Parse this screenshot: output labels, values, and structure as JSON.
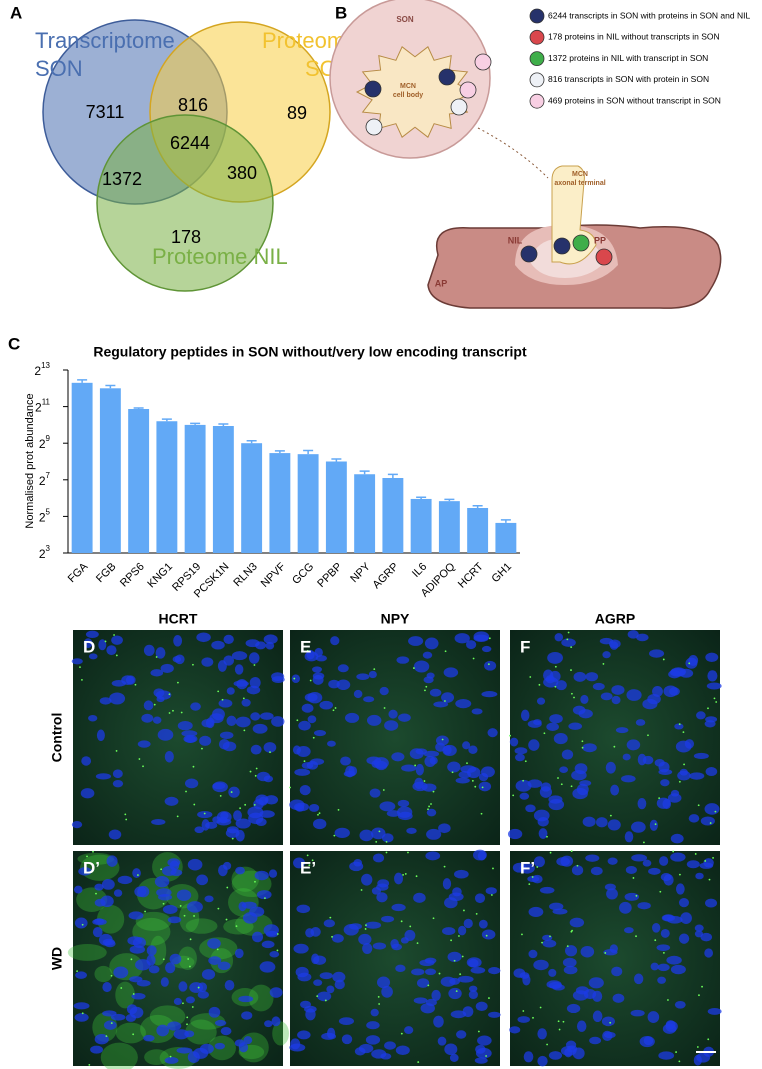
{
  "venn": {
    "label": "A",
    "sets": [
      {
        "lines": [
          "Transcriptome",
          "SON"
        ],
        "color": "#4a6fb0"
      },
      {
        "lines": [
          "Proteome",
          "SON"
        ],
        "color": "#f2c230"
      },
      {
        "lines": [
          "Proteome NIL"
        ],
        "color": "#7ab046"
      }
    ],
    "regions": [
      "7311",
      "816",
      "89",
      "6244",
      "1372",
      "380",
      "178"
    ]
  },
  "schematic": {
    "label": "B",
    "son": "SON",
    "cell_body": [
      "MCN",
      "cell body"
    ],
    "terminal": [
      "MCN",
      "axonal terminal"
    ],
    "nil": "NIL",
    "pp": "PP",
    "ap": "AP",
    "legend": [
      {
        "text": "6244 transcripts in SON with proteins in SON and NIL",
        "color": "#26326b"
      },
      {
        "text": "178 proteins in NIL without  transcripts in  SON",
        "color": "#d9474c"
      },
      {
        "text": "1372 proteins in NIL with transcript in SON",
        "color": "#3fae4a"
      },
      {
        "text": "816 transcripts in SON with protein in SON",
        "color": "#eef1f6"
      },
      {
        "text": "469 proteins in SON without transcript in SON",
        "color": "#f8cfe3"
      }
    ]
  },
  "chart_data": {
    "type": "bar",
    "label": "C",
    "title": "Regulatory peptides in SON without/very low encoding transcript",
    "y_label": "Normalised prot abundance",
    "log_base": 2,
    "color": "#62a9f6",
    "categories": [
      "FGA",
      "FGB",
      "RPS6",
      "KNG1",
      "RPS19",
      "PCSK1N",
      "RLN3",
      "NPVF",
      "GCG",
      "PPBP",
      "NPY",
      "AGRP",
      "IL6",
      "ADIPOQ",
      "HCRT",
      "GH1"
    ],
    "values": [
      5042,
      4096,
      1870,
      1176,
      1024,
      982,
      512,
      352,
      338,
      256,
      158,
      137,
      62,
      57,
      44,
      25
    ],
    "errors": [
      600,
      450,
      70,
      100,
      60,
      80,
      50,
      30,
      50,
      25,
      20,
      20,
      4,
      4,
      4,
      3
    ],
    "ylim": [
      8,
      8192
    ],
    "yticks": [
      {
        "value": 8,
        "label": "2",
        "sup": "3"
      },
      {
        "value": 32,
        "label": "2",
        "sup": "5"
      },
      {
        "value": 128,
        "label": "2",
        "sup": "7"
      },
      {
        "value": 512,
        "label": "2",
        "sup": "9"
      },
      {
        "value": 2048,
        "label": "2",
        "sup": "11"
      },
      {
        "value": 8192,
        "label": "2",
        "sup": "13"
      }
    ]
  },
  "micrographs": {
    "columns": [
      "HCRT",
      "NPY",
      "AGRP"
    ],
    "rows": [
      "Control",
      "WD"
    ],
    "labels": [
      [
        "D",
        "E",
        "F"
      ],
      [
        "D’",
        "E’",
        "F’"
      ]
    ]
  }
}
